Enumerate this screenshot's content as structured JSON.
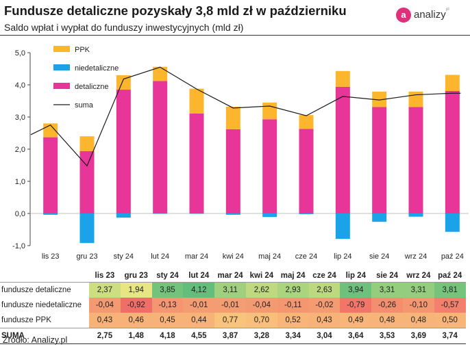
{
  "title": "Fundusze detaliczne pozyskały 3,8 mld zł w październiku",
  "subtitle": "Saldo wpłat i wypłat do funduszy inwestycyjnych (mld zł)",
  "logo": {
    "mark": "a",
    "text": "analizy",
    "sup": "pl"
  },
  "source": "Źródło: Analizy.pl",
  "colors": {
    "ppk": "#fbb62e",
    "niedetaliczne": "#1aa3e8",
    "detaliczne": "#e7359a",
    "suma": "#1a1a1a"
  },
  "chart_data": {
    "type": "bar",
    "stacked": true,
    "categories": [
      "lis 23",
      "gru 23",
      "sty 24",
      "lut 24",
      "mar 24",
      "kwi 24",
      "maj 24",
      "cze 24",
      "lip 24",
      "sie 24",
      "wrz 24",
      "paź 24"
    ],
    "series": [
      {
        "name": "detaliczne",
        "values": [
          2.37,
          1.94,
          3.85,
          4.12,
          3.11,
          2.62,
          2.93,
          2.63,
          3.94,
          3.31,
          3.31,
          3.81
        ]
      },
      {
        "name": "niedetaliczne",
        "values": [
          -0.04,
          -0.92,
          -0.13,
          -0.01,
          -0.01,
          -0.04,
          -0.11,
          -0.02,
          -0.79,
          -0.26,
          -0.1,
          -0.57
        ]
      },
      {
        "name": "PPK",
        "values": [
          0.43,
          0.46,
          0.45,
          0.44,
          0.77,
          0.7,
          0.52,
          0.43,
          0.49,
          0.48,
          0.48,
          0.5
        ]
      }
    ],
    "line": {
      "name": "suma",
      "values": [
        2.75,
        1.48,
        4.18,
        4.55,
        3.87,
        3.28,
        3.34,
        3.04,
        3.64,
        3.53,
        3.69,
        3.74
      ]
    },
    "ylim": [
      -1.0,
      5.0
    ],
    "yticks": [
      5.0,
      4.0,
      3.0,
      2.0,
      1.0,
      0.0,
      -1.0
    ],
    "ytick_labels": [
      "5,0",
      "4,0",
      "3,0",
      "2,0",
      "1,0",
      "0,0",
      "-1,0"
    ],
    "legend": [
      "PPK",
      "niedetaliczne",
      "detaliczne",
      "suma"
    ],
    "legend_position": "top-left",
    "grid": false
  },
  "table": {
    "columns": [
      "lis 23",
      "gru 23",
      "sty 24",
      "lut 24",
      "mar 24",
      "kwi 24",
      "maj 24",
      "cze 24",
      "lip 24",
      "sie 24",
      "wrz 24",
      "paź 24"
    ],
    "rows": [
      {
        "label": "fundusze detaliczne",
        "values": [
          "2,37",
          "1,94",
          "3,85",
          "4,12",
          "3,11",
          "2,62",
          "2,93",
          "2,63",
          "3,94",
          "3,31",
          "3,31",
          "3,81"
        ]
      },
      {
        "label": "fundusze niedetaliczne",
        "values": [
          "-0,04",
          "-0,92",
          "-0,13",
          "-0,01",
          "-0,01",
          "-0,04",
          "-0,11",
          "-0,02",
          "-0,79",
          "-0,26",
          "-0,10",
          "-0,57"
        ]
      },
      {
        "label": "fundusze PPK",
        "values": [
          "0,43",
          "0,46",
          "0,45",
          "0,44",
          "0,77",
          "0,70",
          "0,52",
          "0,43",
          "0,49",
          "0,48",
          "0,48",
          "0,50"
        ]
      },
      {
        "label": "SUMA",
        "values": [
          "2,75",
          "1,48",
          "4,18",
          "4,55",
          "3,87",
          "3,28",
          "3,34",
          "3,04",
          "3,64",
          "3,53",
          "3,69",
          "3,74"
        ]
      }
    ]
  }
}
